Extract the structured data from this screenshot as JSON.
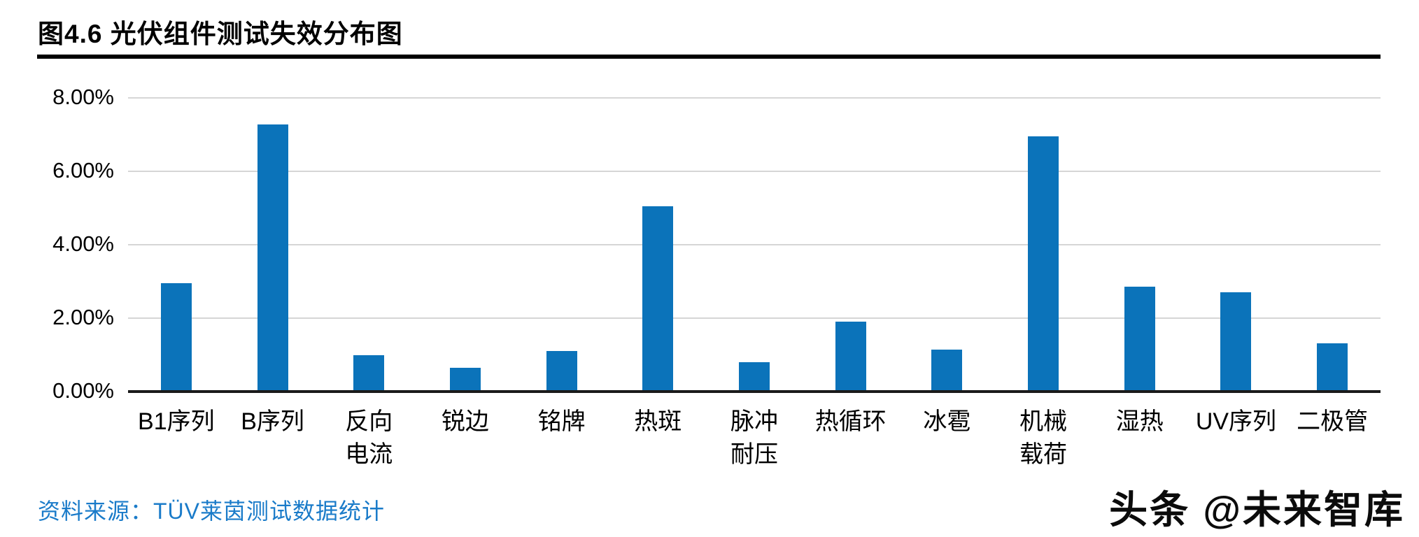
{
  "page": {
    "title": "图4.6 光伏组件测试失效分布图"
  },
  "source": {
    "text": "资料来源：TÜV莱茵测试数据统计"
  },
  "watermark": {
    "text": "头条 @未来智库"
  },
  "colors": {
    "bar": "#0b73ba",
    "gridline": "#d6d6d6",
    "axis": "#1a1a1a",
    "source_text": "#1a7bc9"
  },
  "chart_data": {
    "type": "bar",
    "title": "图4.6 光伏组件测试失效分布图",
    "categories": [
      "B1序列",
      "B序列",
      "反向\n电流",
      "锐边",
      "铭牌",
      "热斑",
      "脉冲\n耐压",
      "热循环",
      "冰雹",
      "机械\n载荷",
      "湿热",
      "UV序列",
      "二极管"
    ],
    "values": [
      2.95,
      7.28,
      1.0,
      0.65,
      1.1,
      5.05,
      0.8,
      1.9,
      1.15,
      6.95,
      2.85,
      2.7,
      1.32
    ],
    "unit": "%",
    "xlabel": "",
    "ylabel": "",
    "ylim": [
      0,
      8
    ],
    "yticks": [
      "8.00%",
      "6.00%",
      "4.00%",
      "2.00%",
      "0.00%"
    ],
    "ytick_values": [
      8,
      6,
      4,
      2,
      0
    ],
    "grid": true,
    "legend_position": "none",
    "bar_color": "#0b73ba"
  }
}
